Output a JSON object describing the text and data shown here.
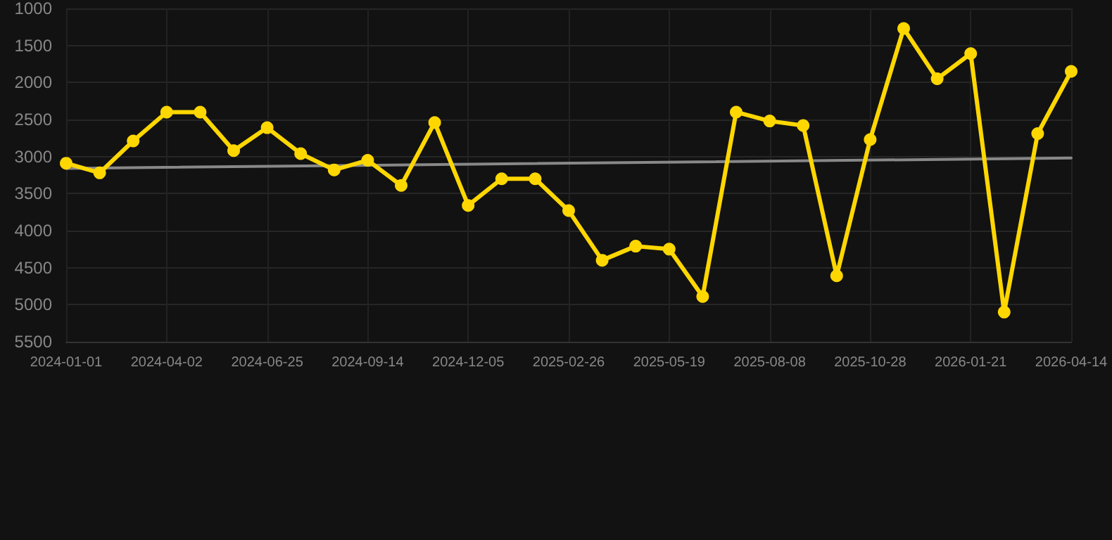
{
  "chart_data": {
    "type": "line",
    "categories": [
      "2024-01-01",
      null,
      null,
      "2024-04-02",
      null,
      null,
      "2024-06-25",
      null,
      null,
      "2024-09-14",
      null,
      null,
      "2024-12-05",
      null,
      null,
      "2025-02-26",
      null,
      null,
      "2025-05-19",
      null,
      null,
      "2025-08-08",
      null,
      null,
      "2025-10-28",
      null,
      null,
      "2026-01-21",
      null,
      null,
      "2026-04-14"
    ],
    "series": [
      {
        "color": "#ffd700",
        "marker": "circle",
        "values": [
          3090,
          3220,
          2790,
          2400,
          2400,
          2920,
          2610,
          2960,
          3180,
          3050,
          3390,
          2540,
          3660,
          3300,
          3300,
          3730,
          4400,
          4210,
          4250,
          4890,
          2400,
          2520,
          2580,
          4610,
          2770,
          1270,
          1950,
          1610,
          5100,
          2690,
          1850
        ]
      },
      {
        "type": "line",
        "color": "#888888",
        "marker": "none",
        "values": [
          3160,
          null,
          null,
          null,
          null,
          null,
          null,
          null,
          null,
          null,
          null,
          null,
          null,
          null,
          null,
          null,
          null,
          null,
          null,
          null,
          null,
          null,
          null,
          null,
          null,
          null,
          null,
          null,
          null,
          null,
          3020
        ]
      }
    ],
    "ylim": [
      5500,
      1000
    ],
    "yticks": [
      1000,
      1500,
      2000,
      2500,
      3000,
      3500,
      4000,
      4500,
      5000,
      5500
    ],
    "grid": true
  }
}
